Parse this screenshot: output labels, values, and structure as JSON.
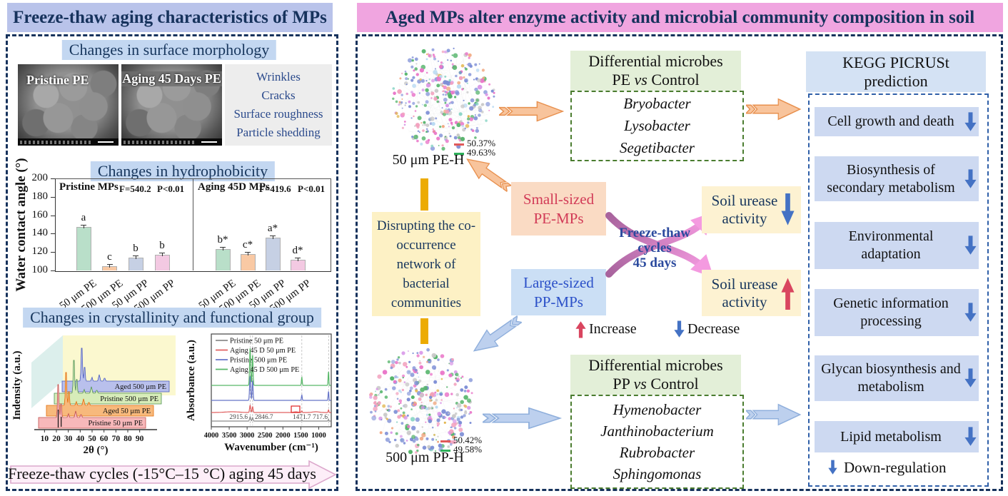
{
  "palette": {
    "left_title_bg": "#b9c3ea",
    "right_title_bg": "#f0a5e0",
    "section_header_bg": "#c3d7f1",
    "navy_text": "#16325c",
    "green_header_bg": "#e3efd8",
    "green_dash_border": "#4a7c2f",
    "kegg_header_bg": "#d4e2f4",
    "kegg_item_bg": "#cdd9f1",
    "kegg_dash_border": "#2f5fa8",
    "yellow_box_bg": "#fdf1c5",
    "small_box_bg": "#fadbc4",
    "small_box_text": "#d23b57",
    "large_box_bg": "#cbdff5",
    "large_box_text": "#2b50c8",
    "urease_bg": "#fdf2d2",
    "gold_connector": "#ecab02",
    "orange_arrow": "#f8c49c",
    "blue_arrow": "#bdd0ee",
    "down_arrow": "#4472c4",
    "up_arrow": "#d9455f",
    "bottom_arrow_bg": "#fdeef8"
  },
  "left_panel": {
    "title": "Freeze-thaw aging characteristics of MPs",
    "morphology": {
      "header": "Changes in surface morphology",
      "sem_labels": [
        "Pristine  PE",
        "Aging 45 Days PE"
      ],
      "notes": [
        "Wrinkles",
        "Cracks",
        "Surface roughness",
        "Particle shedding"
      ]
    },
    "hydrophobicity_header": "Changes in hydrophobicity",
    "crystallinity_header": "Changes in crystallinity and functional group",
    "bottom_arrow": "Freeze-thaw cycles (-15°C–15 °C) aging 45 days"
  },
  "chart_data": [
    {
      "id": "water_contact_angle",
      "type": "bar",
      "title": "Changes in hydrophobicity",
      "ylabel": "Water contact angle (°)",
      "ylim": [
        100,
        200
      ],
      "yticks": [
        100,
        120,
        140,
        160,
        180,
        200
      ],
      "bar_colors": [
        "#b9dfc9",
        "#f9c9a4",
        "#c6d0e4",
        "#f3c9e2"
      ],
      "panels": [
        {
          "label": "Pristine MPs",
          "stats": "F=540.2",
          "p": "P<0.01",
          "categories": [
            "50 μm PE",
            "500 μm PE",
            "50 μm PP",
            "500 μm PP"
          ],
          "values": [
            147,
            105,
            114,
            117
          ],
          "letters": [
            "a",
            "c",
            "b",
            "b"
          ]
        },
        {
          "label": "Aging 45D MPs",
          "stats": "F=419.6",
          "p": "P<0.01",
          "categories": [
            "50 μm PE",
            "500 μm PE",
            "50 μm PP",
            "500 μm PP"
          ],
          "values": [
            123,
            118,
            136,
            112
          ],
          "letters": [
            "b*",
            "c*",
            "a*",
            "d*"
          ]
        }
      ]
    },
    {
      "id": "xrd",
      "type": "line",
      "xlabel": "2θ (°)",
      "ylabel": "Indensity (a.u.)",
      "xticks": [
        10,
        20,
        30,
        40,
        50,
        60,
        70,
        80,
        90
      ],
      "xlim": [
        5,
        95
      ],
      "peaks_2theta": [
        21.5,
        23.9,
        30.1,
        36.2,
        40.7
      ],
      "series": [
        {
          "name": "Pristine 50 μm PE",
          "fill": "#f7b8ba",
          "line": "#c0504d"
        },
        {
          "name": "Aged 50 μm PE",
          "fill": "#f7b97c",
          "line": "#e36c09"
        },
        {
          "name": "Pristine 500 μm PE",
          "fill": "#d7ecb9",
          "line": "#4f9153"
        },
        {
          "name": "Aged 500 μm PE",
          "fill": "#b9c0ec",
          "line": "#4a5bbf"
        }
      ]
    },
    {
      "id": "ftir",
      "type": "line",
      "xlabel": "Wavenumber (cm⁻¹)",
      "ylabel": "Absorbance (a.u.)",
      "xticks": [
        4000,
        3500,
        3000,
        2500,
        2000,
        1500,
        1000
      ],
      "xlim_reversed": [
        4000,
        650
      ],
      "peak_labels": [
        "2915.6",
        "2846.7",
        "1471.7",
        "717.6"
      ],
      "peak_positions": [
        2915.6,
        2846.7,
        1471.7,
        717.6
      ],
      "series": [
        {
          "name": "Pristine 50 μm PE",
          "color": "#8c8c8c",
          "amp": 6
        },
        {
          "name": "Aging 45 D 50 μm PE",
          "color": "#e06060",
          "amp": 10
        },
        {
          "name": "Pristine 500 μm PE",
          "color": "#6674c8",
          "amp": 34
        },
        {
          "name": "Aging 45 D 500 μm PE",
          "color": "#58b868",
          "amp": 52
        }
      ]
    }
  ],
  "right_panel": {
    "title": "Aged MPs alter enzyme activity and microbial community composition in soil",
    "network_pe": {
      "label": "50 μm PE-H",
      "legend": [
        {
          "color": "#e05a5a",
          "value": "50.37%"
        },
        {
          "color": "#2eb05a",
          "value": "49.63%"
        }
      ]
    },
    "network_pp": {
      "label": "500 μm PP-H",
      "legend": [
        {
          "color": "#e05a5a",
          "value": "50.42%"
        },
        {
          "color": "#2eb05a",
          "value": "49.58%"
        }
      ]
    },
    "diff_pe": {
      "header_line1": "Differential microbes",
      "header_prefix": "PE ",
      "header_vs": "vs",
      "header_suffix": " Control",
      "microbes": [
        "Bryobacter",
        "Lysobacter",
        "Segetibacter"
      ]
    },
    "diff_pp": {
      "header_line1": "Differential microbes",
      "header_prefix": "PP ",
      "header_vs": "vs",
      "header_suffix": " Control",
      "microbes": [
        "Hymenobacter",
        "Janthinobacterium",
        "Rubrobacter",
        "Sphingomonas"
      ]
    },
    "kegg": {
      "header": "KEGG PICRUSt prediction",
      "items": [
        "Cell growth and death",
        "Biosynthesis of secondary metabolism",
        "Environmental adaptation",
        "Genetic information processing",
        "Glycan biosynthesis and metabolism",
        "Lipid metabolism"
      ],
      "legend_label": "Down-regulation"
    },
    "disrupting_label": "Disrupting  the co-occurrence network of bacterial communities",
    "small_sized_label": "Small-sized PE-MPs",
    "large_sized_label": "Large-sized PP-MPs",
    "freeze_thaw_lines": [
      "Freeze-thaw",
      "cycles",
      "45 days"
    ],
    "urease_boxes": [
      {
        "label": "Soil urease activity",
        "direction": "down"
      },
      {
        "label": "Soil urease activity",
        "direction": "up"
      }
    ],
    "legend_increase": "Increase",
    "legend_decrease": "Decrease"
  }
}
